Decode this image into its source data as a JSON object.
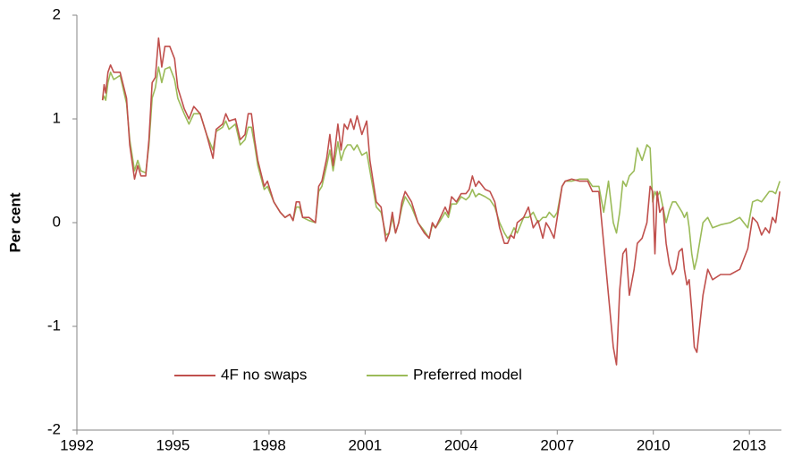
{
  "chart_data": {
    "type": "line",
    "y_label": "Per cent",
    "x": [
      1992.8,
      1992.85,
      1992.9,
      1992.97,
      1993.05,
      1993.15,
      1993.35,
      1993.55,
      1993.65,
      1993.8,
      1993.9,
      1994.0,
      1994.15,
      1994.25,
      1994.35,
      1994.45,
      1994.55,
      1994.65,
      1994.75,
      1994.9,
      1995.05,
      1995.15,
      1995.35,
      1995.5,
      1995.65,
      1995.85,
      1996.05,
      1996.25,
      1996.35,
      1996.55,
      1996.65,
      1996.75,
      1996.95,
      1997.1,
      1997.25,
      1997.35,
      1997.45,
      1997.55,
      1997.65,
      1997.85,
      1997.95,
      1998.15,
      1998.35,
      1998.5,
      1998.65,
      1998.75,
      1998.85,
      1998.95,
      1999.05,
      1999.25,
      1999.45,
      1999.55,
      1999.65,
      1999.8,
      1999.9,
      2000.0,
      2000.15,
      2000.25,
      2000.35,
      2000.45,
      2000.55,
      2000.65,
      2000.75,
      2000.9,
      2001.05,
      2001.15,
      2001.35,
      2001.5,
      2001.65,
      2001.75,
      2001.85,
      2001.95,
      2002.05,
      2002.15,
      2002.25,
      2002.45,
      2002.65,
      2002.85,
      2003.0,
      2003.1,
      2003.2,
      2003.35,
      2003.5,
      2003.6,
      2003.7,
      2003.85,
      2004.0,
      2004.15,
      2004.25,
      2004.35,
      2004.45,
      2004.55,
      2004.75,
      2004.9,
      2005.05,
      2005.2,
      2005.35,
      2005.45,
      2005.55,
      2005.65,
      2005.75,
      2005.95,
      2006.1,
      2006.25,
      2006.4,
      2006.55,
      2006.65,
      2006.75,
      2006.9,
      2007.0,
      2007.15,
      2007.25,
      2007.45,
      2007.7,
      2007.95,
      2008.1,
      2008.3,
      2008.45,
      2008.6,
      2008.75,
      2008.85,
      2008.95,
      2009.05,
      2009.15,
      2009.25,
      2009.4,
      2009.5,
      2009.65,
      2009.8,
      2009.9,
      2009.98,
      2010.05,
      2010.12,
      2010.2,
      2010.3,
      2010.4,
      2010.5,
      2010.6,
      2010.7,
      2010.8,
      2010.9,
      2010.97,
      2011.05,
      2011.12,
      2011.2,
      2011.28,
      2011.36,
      2011.55,
      2011.7,
      2011.85,
      2012.1,
      2012.4,
      2012.7,
      2012.95,
      2013.1,
      2013.25,
      2013.38,
      2013.5,
      2013.62,
      2013.72,
      2013.82,
      2013.95
    ],
    "series": [
      {
        "name": "4F no swaps",
        "color": "#c0504d",
        "values": [
          1.18,
          1.33,
          1.25,
          1.45,
          1.52,
          1.45,
          1.45,
          1.2,
          0.75,
          0.42,
          0.55,
          0.45,
          0.45,
          0.8,
          1.35,
          1.4,
          1.78,
          1.5,
          1.7,
          1.7,
          1.58,
          1.3,
          1.1,
          1.0,
          1.12,
          1.05,
          0.85,
          0.62,
          0.9,
          0.95,
          1.05,
          0.98,
          1.0,
          0.8,
          0.85,
          1.05,
          1.05,
          0.8,
          0.6,
          0.35,
          0.4,
          0.2,
          0.1,
          0.05,
          0.08,
          0.02,
          0.2,
          0.2,
          0.05,
          0.05,
          0.0,
          0.35,
          0.4,
          0.62,
          0.85,
          0.55,
          0.95,
          0.7,
          0.95,
          0.9,
          1.0,
          0.9,
          1.03,
          0.85,
          0.98,
          0.6,
          0.2,
          0.15,
          -0.18,
          -0.1,
          0.1,
          -0.1,
          0.0,
          0.2,
          0.3,
          0.2,
          0.0,
          -0.1,
          -0.15,
          0.0,
          -0.05,
          0.05,
          0.15,
          0.08,
          0.25,
          0.2,
          0.28,
          0.28,
          0.32,
          0.45,
          0.35,
          0.4,
          0.32,
          0.3,
          0.2,
          -0.05,
          -0.2,
          -0.2,
          -0.12,
          -0.15,
          0.0,
          0.05,
          0.15,
          -0.05,
          0.02,
          -0.15,
          0.0,
          -0.05,
          -0.15,
          0.05,
          0.35,
          0.4,
          0.42,
          0.4,
          0.4,
          0.3,
          0.3,
          -0.2,
          -0.7,
          -1.2,
          -1.37,
          -0.65,
          -0.3,
          -0.25,
          -0.7,
          -0.45,
          -0.2,
          -0.15,
          0.0,
          0.35,
          0.3,
          -0.3,
          0.3,
          0.1,
          0.15,
          -0.2,
          -0.4,
          -0.5,
          -0.45,
          -0.28,
          -0.25,
          -0.45,
          -0.6,
          -0.55,
          -0.85,
          -1.2,
          -1.25,
          -0.7,
          -0.45,
          -0.55,
          -0.5,
          -0.5,
          -0.45,
          -0.25,
          0.05,
          0.0,
          -0.12,
          -0.05,
          -0.1,
          0.05,
          0.0,
          0.3
        ]
      },
      {
        "name": "Preferred model",
        "color": "#9bbb59",
        "values": [
          1.18,
          1.22,
          1.18,
          1.35,
          1.45,
          1.38,
          1.42,
          1.15,
          0.8,
          0.5,
          0.6,
          0.5,
          0.48,
          0.75,
          1.2,
          1.3,
          1.5,
          1.35,
          1.48,
          1.5,
          1.38,
          1.2,
          1.05,
          0.95,
          1.05,
          1.05,
          0.85,
          0.7,
          0.88,
          0.92,
          0.98,
          0.9,
          0.95,
          0.75,
          0.8,
          0.92,
          0.92,
          0.75,
          0.55,
          0.32,
          0.35,
          0.2,
          0.1,
          0.05,
          0.08,
          0.02,
          0.15,
          0.15,
          0.05,
          0.02,
          0.0,
          0.3,
          0.35,
          0.55,
          0.7,
          0.5,
          0.78,
          0.6,
          0.7,
          0.75,
          0.75,
          0.7,
          0.75,
          0.65,
          0.68,
          0.5,
          0.15,
          0.1,
          -0.12,
          -0.1,
          0.05,
          -0.1,
          0.0,
          0.15,
          0.25,
          0.15,
          0.0,
          -0.08,
          -0.15,
          -0.02,
          -0.05,
          0.02,
          0.1,
          0.05,
          0.18,
          0.18,
          0.25,
          0.22,
          0.25,
          0.32,
          0.25,
          0.28,
          0.25,
          0.22,
          0.15,
          0.0,
          -0.1,
          -0.15,
          -0.12,
          -0.05,
          -0.1,
          0.05,
          0.05,
          0.1,
          0.0,
          0.05,
          0.05,
          0.1,
          0.05,
          0.1,
          0.35,
          0.4,
          0.4,
          0.42,
          0.42,
          0.35,
          0.35,
          0.1,
          0.4,
          0.0,
          -0.1,
          0.1,
          0.4,
          0.35,
          0.45,
          0.5,
          0.72,
          0.6,
          0.75,
          0.72,
          0.2,
          0.3,
          0.25,
          0.3,
          0.15,
          0.0,
          0.12,
          0.2,
          0.2,
          0.15,
          0.1,
          0.05,
          0.1,
          -0.05,
          -0.3,
          -0.45,
          -0.35,
          0.0,
          0.05,
          -0.05,
          -0.02,
          0.0,
          0.05,
          -0.05,
          0.2,
          0.22,
          0.2,
          0.25,
          0.3,
          0.3,
          0.28,
          0.4
        ]
      }
    ],
    "xlim": [
      1992,
      2014
    ],
    "xticks": [
      1992,
      1995,
      1998,
      2001,
      2004,
      2007,
      2010,
      2013
    ],
    "ylim": [
      -2,
      2
    ],
    "yticks": [
      -2,
      -1,
      0,
      1,
      2
    ],
    "grid": false
  }
}
